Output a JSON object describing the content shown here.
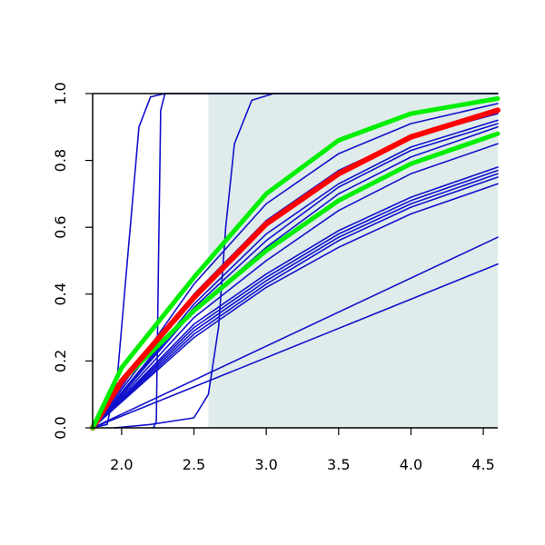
{
  "chart_data": {
    "type": "line",
    "title": "",
    "xlabel": "",
    "ylabel": "",
    "xlim": [
      1.8,
      4.6
    ],
    "ylim": [
      0.0,
      1.0
    ],
    "grid": false,
    "xticks": [
      2.0,
      2.5,
      3.0,
      3.5,
      4.0,
      4.5
    ],
    "xtick_labels": [
      "2.0",
      "2.5",
      "3.0",
      "3.5",
      "4.0",
      "4.5"
    ],
    "yticks": [
      0.0,
      0.2,
      0.4,
      0.6,
      0.8,
      1.0
    ],
    "ytick_labels": [
      "0.0",
      "0.2",
      "0.4",
      "0.6",
      "0.8",
      "1.0"
    ],
    "shaded_region": {
      "x_from": 2.6,
      "x_to": 4.6,
      "color": "#dfeceb"
    },
    "colors": {
      "blue": "#1111cc",
      "red": "#ff0000",
      "green": "#00ee00",
      "axis": "#000000"
    },
    "series": [
      {
        "color": "blue",
        "lw": 1.6,
        "points": [
          [
            1.8,
            0
          ],
          [
            1.9,
            0.01
          ],
          [
            1.97,
            0.15
          ],
          [
            2.05,
            0.55
          ],
          [
            2.12,
            0.9
          ],
          [
            2.2,
            0.99
          ],
          [
            2.3,
            1
          ],
          [
            4.6,
            1
          ]
        ]
      },
      {
        "color": "blue",
        "lw": 1.6,
        "points": [
          [
            2.22,
            0
          ],
          [
            2.24,
            0.02
          ],
          [
            2.255,
            0.5
          ],
          [
            2.27,
            0.95
          ],
          [
            2.3,
            1
          ],
          [
            4.6,
            1
          ]
        ]
      },
      {
        "color": "blue",
        "lw": 1.6,
        "points": [
          [
            1.95,
            0
          ],
          [
            2.2,
            0.01
          ],
          [
            2.5,
            0.03
          ],
          [
            2.6,
            0.1
          ],
          [
            2.67,
            0.3
          ],
          [
            2.72,
            0.6
          ],
          [
            2.78,
            0.85
          ],
          [
            2.9,
            0.98
          ],
          [
            3.05,
            1
          ],
          [
            4.6,
            1
          ]
        ]
      },
      {
        "color": "blue",
        "lw": 1.6,
        "points": [
          [
            1.8,
            0
          ],
          [
            4.6,
            0.49
          ]
        ]
      },
      {
        "color": "blue",
        "lw": 1.6,
        "points": [
          [
            1.8,
            0
          ],
          [
            4.6,
            0.57
          ]
        ]
      },
      {
        "color": "blue",
        "lw": 1.6,
        "points": [
          [
            1.8,
            0
          ],
          [
            2.5,
            0.27
          ],
          [
            3,
            0.42
          ],
          [
            3.5,
            0.54
          ],
          [
            4,
            0.64
          ],
          [
            4.6,
            0.73
          ]
        ]
      },
      {
        "color": "blue",
        "lw": 1.6,
        "points": [
          [
            1.8,
            0
          ],
          [
            2.5,
            0.28
          ],
          [
            3,
            0.43
          ],
          [
            3.5,
            0.56
          ],
          [
            4,
            0.66
          ],
          [
            4.6,
            0.75
          ]
        ]
      },
      {
        "color": "blue",
        "lw": 1.6,
        "points": [
          [
            1.8,
            0
          ],
          [
            2.5,
            0.29
          ],
          [
            3,
            0.44
          ],
          [
            3.5,
            0.57
          ],
          [
            4,
            0.67
          ],
          [
            4.6,
            0.76
          ]
        ]
      },
      {
        "color": "blue",
        "lw": 1.6,
        "points": [
          [
            1.8,
            0
          ],
          [
            2.5,
            0.3
          ],
          [
            3,
            0.45
          ],
          [
            3.5,
            0.58
          ],
          [
            4,
            0.68
          ],
          [
            4.6,
            0.77
          ]
        ]
      },
      {
        "color": "blue",
        "lw": 1.6,
        "points": [
          [
            1.8,
            0
          ],
          [
            2.5,
            0.31
          ],
          [
            3,
            0.46
          ],
          [
            3.5,
            0.59
          ],
          [
            4,
            0.69
          ],
          [
            4.6,
            0.78
          ]
        ]
      },
      {
        "color": "blue",
        "lw": 1.6,
        "points": [
          [
            1.8,
            0
          ],
          [
            2.5,
            0.33
          ],
          [
            3,
            0.5
          ],
          [
            3.5,
            0.65
          ],
          [
            4,
            0.76
          ],
          [
            4.6,
            0.85
          ]
        ]
      },
      {
        "color": "blue",
        "lw": 1.6,
        "points": [
          [
            1.8,
            0
          ],
          [
            2.5,
            0.35
          ],
          [
            3,
            0.54
          ],
          [
            3.5,
            0.7
          ],
          [
            4,
            0.81
          ],
          [
            4.6,
            0.9
          ]
        ]
      },
      {
        "color": "blue",
        "lw": 1.6,
        "points": [
          [
            1.8,
            0
          ],
          [
            2.5,
            0.36
          ],
          [
            3,
            0.56
          ],
          [
            3.5,
            0.72
          ],
          [
            4,
            0.83
          ],
          [
            4.6,
            0.91
          ]
        ]
      },
      {
        "color": "blue",
        "lw": 1.6,
        "points": [
          [
            1.8,
            0
          ],
          [
            2.5,
            0.37
          ],
          [
            3,
            0.58
          ],
          [
            3.5,
            0.73
          ],
          [
            4,
            0.84
          ],
          [
            4.6,
            0.92
          ]
        ]
      },
      {
        "color": "blue",
        "lw": 1.6,
        "points": [
          [
            1.8,
            0
          ],
          [
            2.5,
            0.4
          ],
          [
            3,
            0.62
          ],
          [
            3.5,
            0.77
          ],
          [
            4,
            0.87
          ],
          [
            4.6,
            0.94
          ]
        ]
      },
      {
        "color": "blue",
        "lw": 1.6,
        "points": [
          [
            1.8,
            0
          ],
          [
            2.5,
            0.43
          ],
          [
            3,
            0.67
          ],
          [
            3.5,
            0.82
          ],
          [
            4,
            0.91
          ],
          [
            4.6,
            0.97
          ]
        ]
      },
      {
        "color": "green",
        "lw": 5,
        "points": [
          [
            1.8,
            0
          ],
          [
            2.0,
            0.14
          ],
          [
            2.5,
            0.35
          ],
          [
            3.0,
            0.53
          ],
          [
            3.5,
            0.68
          ],
          [
            4.0,
            0.79
          ],
          [
            4.6,
            0.88
          ]
        ]
      },
      {
        "color": "red",
        "lw": 6,
        "points": [
          [
            1.8,
            0
          ],
          [
            2.0,
            0.14
          ],
          [
            2.5,
            0.39
          ],
          [
            3.0,
            0.61
          ],
          [
            3.5,
            0.76
          ],
          [
            4.0,
            0.87
          ],
          [
            4.6,
            0.95
          ]
        ]
      },
      {
        "color": "green",
        "lw": 5,
        "points": [
          [
            1.8,
            0
          ],
          [
            2.0,
            0.18
          ],
          [
            2.5,
            0.45
          ],
          [
            3.0,
            0.7
          ],
          [
            3.5,
            0.86
          ],
          [
            4.0,
            0.94
          ],
          [
            4.6,
            0.985
          ]
        ]
      }
    ]
  }
}
